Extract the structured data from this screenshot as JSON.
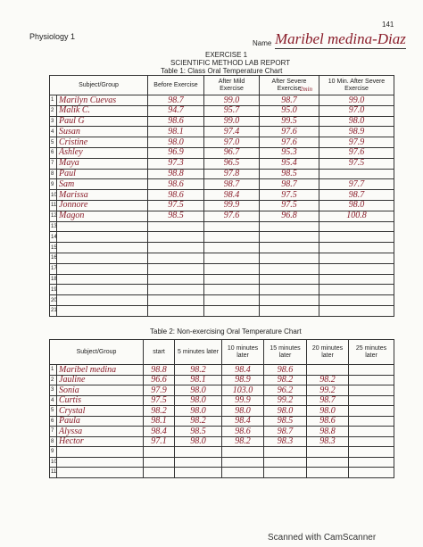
{
  "header": {
    "course": "Physiology 1",
    "name_label": "Name",
    "name": "Maribel medina-Diaz",
    "page_number": "141",
    "exercise": "EXERCISE 1",
    "report_title": "SCIENTIFIC METHOD LAB REPORT"
  },
  "table1": {
    "caption": "Table 1: Class Oral Temperature Chart",
    "columns": [
      "Subject/Group",
      "Before Exercise",
      "After Mild Exercise",
      "After Severe Exercise",
      "10 Min. After Severe Exercise"
    ],
    "annotation": "2min",
    "rows": [
      {
        "number": "1",
        "cells": [
          "Marilyn Cuevas",
          "98.7",
          "99.0",
          "98.7",
          "99.0"
        ]
      },
      {
        "number": "2",
        "cells": [
          "Malik C.",
          "94.7",
          "95.7",
          "95.0",
          "97.0"
        ]
      },
      {
        "number": "3",
        "cells": [
          "Paul G",
          "98.6",
          "99.0",
          "99.5",
          "98.0"
        ]
      },
      {
        "number": "4",
        "cells": [
          "Susan",
          "98.1",
          "97.4",
          "97.6",
          "98.9"
        ]
      },
      {
        "number": "5",
        "cells": [
          "Cristine",
          "98.0",
          "97.0",
          "97.6",
          "97.9"
        ]
      },
      {
        "number": "6",
        "cells": [
          "Ashley",
          "96.9",
          "96.7",
          "95.3",
          "97.6"
        ]
      },
      {
        "number": "7",
        "cells": [
          "Maya",
          "97.3",
          "96.5",
          "95.4",
          "97.5"
        ]
      },
      {
        "number": "8",
        "cells": [
          "Paul",
          "98.8",
          "97.8",
          "98.5"
        ]
      },
      {
        "number": "9",
        "cells": [
          "Sam",
          "98.6",
          "98.7",
          "98.7",
          "97.7"
        ]
      },
      {
        "number": "10",
        "cells": [
          "Marissa",
          "98.6",
          "98.4",
          "97.5",
          "98.7"
        ]
      },
      {
        "number": "11",
        "cells": [
          "Jonnore",
          "97.5",
          "99.9",
          "97.5",
          "98.0"
        ]
      },
      {
        "number": "12",
        "cells": [
          "Magon",
          "98.5",
          "97.6",
          "96.8",
          "100.8"
        ]
      },
      {
        "number": "13"
      },
      {
        "number": "14"
      },
      {
        "number": "15"
      },
      {
        "number": "16"
      },
      {
        "number": "17"
      },
      {
        "number": "18"
      },
      {
        "number": "19"
      },
      {
        "number": "20"
      },
      {
        "number": "21"
      }
    ]
  },
  "table2": {
    "caption": "Table 2:  Non-exercising Oral Temperature Chart",
    "columns": [
      "Subject/Group",
      "start",
      "5 minutes later",
      "10 minutes later",
      "15 minutes later",
      "20 minutes later",
      "25 minutes later"
    ],
    "rows": [
      {
        "number": "1",
        "cells": [
          "Maribel medina",
          "98.8",
          "98.2",
          "98.4",
          "98.6"
        ]
      },
      {
        "number": "2",
        "cells": [
          "Jauline",
          "96.6",
          "98.1",
          "98.9",
          "98.2",
          "98.2"
        ]
      },
      {
        "number": "3",
        "cells": [
          "Sonia",
          "97.9",
          "98.0",
          "103.0",
          "96.2",
          "99.2"
        ]
      },
      {
        "number": "4",
        "cells": [
          "Curtis",
          "97.5",
          "98.0",
          "99.9",
          "99.2",
          "98.7"
        ]
      },
      {
        "number": "5",
        "cells": [
          "Crystal",
          "98.2",
          "98.0",
          "98.0",
          "98.0",
          "98.0"
        ]
      },
      {
        "number": "6",
        "cells": [
          "Paula",
          "98.1",
          "98.2",
          "98.4",
          "98.5",
          "98.6"
        ]
      },
      {
        "number": "7",
        "cells": [
          "Alyssa",
          "98.4",
          "98.5",
          "98.6",
          "98.7",
          "98.8"
        ]
      },
      {
        "number": "8",
        "cells": [
          "Hector",
          "97.1",
          "98.0",
          "98.2",
          "98.3",
          "98.3"
        ]
      },
      {
        "number": "9"
      },
      {
        "number": "10"
      },
      {
        "number": "11"
      }
    ]
  },
  "footer": {
    "scanner": "Scanned with CamScanner"
  }
}
